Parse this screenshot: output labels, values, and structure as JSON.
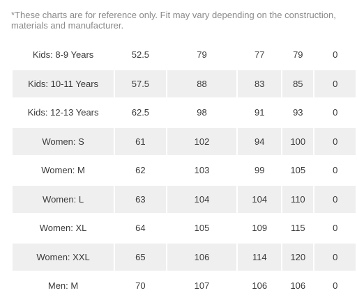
{
  "disclaimer": "*These charts are for reference only. Fit may vary depending on the construction, materials and manufacturer.",
  "rows": [
    {
      "size": "Kids: 8-9 Years",
      "values": [
        "52.5",
        "79",
        "77",
        "79",
        "0"
      ]
    },
    {
      "size": "Kids: 10-11 Years",
      "values": [
        "57.5",
        "88",
        "83",
        "85",
        "0"
      ]
    },
    {
      "size": "Kids: 12-13 Years",
      "values": [
        "62.5",
        "98",
        "91",
        "93",
        "0"
      ]
    },
    {
      "size": "Women: S",
      "values": [
        "61",
        "102",
        "94",
        "100",
        "0"
      ]
    },
    {
      "size": "Women: M",
      "values": [
        "62",
        "103",
        "99",
        "105",
        "0"
      ]
    },
    {
      "size": "Women: L",
      "values": [
        "63",
        "104",
        "104",
        "110",
        "0"
      ]
    },
    {
      "size": "Women: XL",
      "values": [
        "64",
        "105",
        "109",
        "115",
        "0"
      ]
    },
    {
      "size": "Women: XXL",
      "values": [
        "65",
        "106",
        "114",
        "120",
        "0"
      ]
    },
    {
      "size": "Men: M",
      "values": [
        "70",
        "107",
        "106",
        "106",
        "0"
      ]
    }
  ]
}
